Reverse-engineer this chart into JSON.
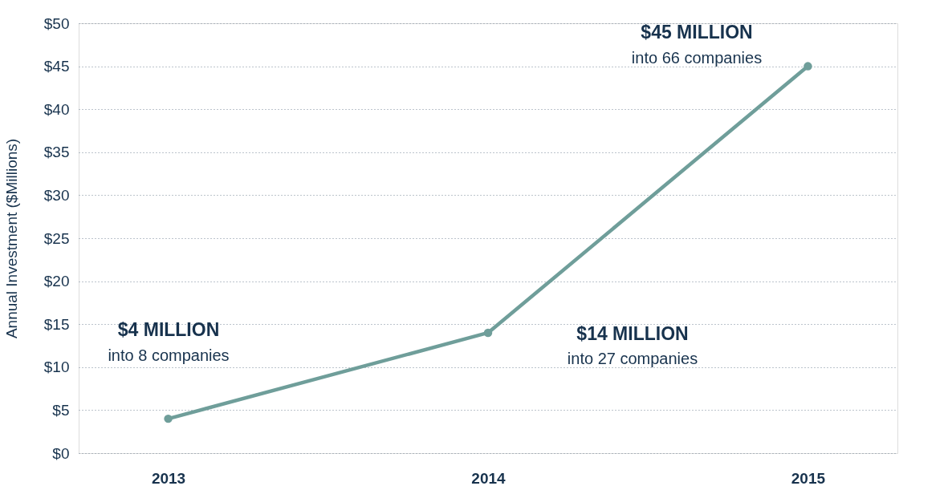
{
  "chart_data": {
    "type": "line",
    "ylabel": "Annual Investment ($Millions)",
    "categories": [
      "2013",
      "2014",
      "2015"
    ],
    "series": [
      {
        "color": "#6f9e9a",
        "values": [
          4,
          14,
          45
        ]
      }
    ],
    "ylim": [
      0,
      50
    ],
    "yticks": [
      {
        "value": 0,
        "label": "$0"
      },
      {
        "value": 5,
        "label": "$5"
      },
      {
        "value": 10,
        "label": "$10"
      },
      {
        "value": 15,
        "label": "$15"
      },
      {
        "value": 20,
        "label": "$20"
      },
      {
        "value": 25,
        "label": "$25"
      },
      {
        "value": 30,
        "label": "$30"
      },
      {
        "value": 35,
        "label": "$35"
      },
      {
        "value": 40,
        "label": "$40"
      },
      {
        "value": 45,
        "label": "$45"
      },
      {
        "value": 50,
        "label": "$50"
      }
    ],
    "grid": "y",
    "marker": "circle",
    "line_style": "solid",
    "annotations": [
      "$4 MILLION\ninto 8 companies",
      "$14 MILLION\ninto 27 companies",
      "$45 MILLION\ninto 66 companies"
    ]
  }
}
